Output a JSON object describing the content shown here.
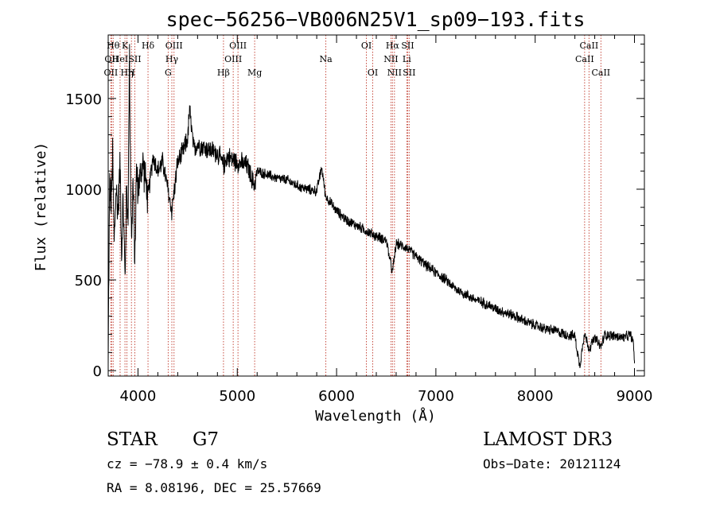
{
  "chart_data": {
    "type": "line",
    "title": "spec−56256−VB006N25V1_sp09−193.fits",
    "xlabel": "Wavelength (Å)",
    "ylabel": "Flux (relative)",
    "xlim": [
      3700,
      9100
    ],
    "ylim": [
      -30,
      1850
    ],
    "xticks": [
      4000,
      5000,
      6000,
      7000,
      8000,
      9000
    ],
    "yticks": [
      0,
      500,
      1000,
      1500
    ],
    "series": [
      {
        "name": "spectrum",
        "color": "#000000",
        "anchors": [
          [
            3700,
            30
          ],
          [
            3705,
            420
          ],
          [
            3715,
            1050
          ],
          [
            3730,
            900
          ],
          [
            3745,
            1200
          ],
          [
            3760,
            700
          ],
          [
            3780,
            1000
          ],
          [
            3800,
            880
          ],
          [
            3820,
            1150
          ],
          [
            3835,
            650
          ],
          [
            3850,
            950
          ],
          [
            3870,
            500
          ],
          [
            3885,
            1000
          ],
          [
            3900,
            850
          ],
          [
            3915,
            1800
          ],
          [
            3920,
            1300
          ],
          [
            3935,
            700
          ],
          [
            3950,
            1050
          ],
          [
            3968,
            600
          ],
          [
            3985,
            1100
          ],
          [
            4000,
            1000
          ],
          [
            4050,
            1150
          ],
          [
            4100,
            950
          ],
          [
            4150,
            1180
          ],
          [
            4200,
            1100
          ],
          [
            4250,
            1150
          ],
          [
            4300,
            1000
          ],
          [
            4340,
            880
          ],
          [
            4400,
            1150
          ],
          [
            4450,
            1200
          ],
          [
            4500,
            1280
          ],
          [
            4520,
            1440
          ],
          [
            4560,
            1220
          ],
          [
            4600,
            1250
          ],
          [
            4700,
            1220
          ],
          [
            4800,
            1200
          ],
          [
            4861,
            1130
          ],
          [
            4900,
            1180
          ],
          [
            5000,
            1150
          ],
          [
            5100,
            1130
          ],
          [
            5170,
            1020
          ],
          [
            5200,
            1100
          ],
          [
            5300,
            1080
          ],
          [
            5400,
            1060
          ],
          [
            5500,
            1050
          ],
          [
            5600,
            1020
          ],
          [
            5700,
            1000
          ],
          [
            5800,
            990
          ],
          [
            5850,
            1120
          ],
          [
            5890,
            960
          ],
          [
            6000,
            880
          ],
          [
            6100,
            830
          ],
          [
            6200,
            800
          ],
          [
            6300,
            770
          ],
          [
            6400,
            740
          ],
          [
            6500,
            720
          ],
          [
            6563,
            540
          ],
          [
            6600,
            700
          ],
          [
            6700,
            680
          ],
          [
            6800,
            630
          ],
          [
            6900,
            580
          ],
          [
            7000,
            540
          ],
          [
            7100,
            500
          ],
          [
            7200,
            450
          ],
          [
            7300,
            420
          ],
          [
            7400,
            390
          ],
          [
            7500,
            370
          ],
          [
            7600,
            340
          ],
          [
            7700,
            320
          ],
          [
            7800,
            300
          ],
          [
            7900,
            270
          ],
          [
            8000,
            250
          ],
          [
            8100,
            230
          ],
          [
            8200,
            220
          ],
          [
            8300,
            200
          ],
          [
            8400,
            190
          ],
          [
            8450,
            20
          ],
          [
            8480,
            160
          ],
          [
            8500,
            200
          ],
          [
            8542,
            120
          ],
          [
            8600,
            180
          ],
          [
            8662,
            130
          ],
          [
            8700,
            200
          ],
          [
            8800,
            190
          ],
          [
            8900,
            180
          ],
          [
            8960,
            200
          ],
          [
            8990,
            150
          ],
          [
            9000,
            40
          ]
        ]
      }
    ],
    "line_marks": [
      {
        "w": 3727,
        "label": "OII",
        "row": 3
      },
      {
        "w": 3734,
        "label": "OII",
        "row": 2
      },
      {
        "w": 3750,
        "label": "Hθ",
        "row": 1
      },
      {
        "w": 3820,
        "label": "HeI",
        "row": 2
      },
      {
        "w": 3869,
        "label": "K",
        "row": 1
      },
      {
        "w": 3889,
        "label": "Hη",
        "row": 3
      },
      {
        "w": 3934,
        "label": "H",
        "row": 3
      },
      {
        "w": 3968,
        "label": "SII",
        "row": 2
      },
      {
        "w": 4101,
        "label": "Hδ",
        "row": 1
      },
      {
        "w": 4304,
        "label": "G",
        "row": 3
      },
      {
        "w": 4341,
        "label": "Hγ",
        "row": 2
      },
      {
        "w": 4363,
        "label": "OIII",
        "row": 1
      },
      {
        "w": 4861,
        "label": "Hβ",
        "row": 3
      },
      {
        "w": 4959,
        "label": "OIII",
        "row": 2
      },
      {
        "w": 5007,
        "label": "OIII",
        "row": 1
      },
      {
        "w": 5175,
        "label": "Mg",
        "row": 3
      },
      {
        "w": 5892,
        "label": "Na",
        "row": 2
      },
      {
        "w": 6300,
        "label": "OI",
        "row": 1
      },
      {
        "w": 6364,
        "label": "OI",
        "row": 3
      },
      {
        "w": 6548,
        "label": "NII",
        "row": 2
      },
      {
        "w": 6563,
        "label": "Hα",
        "row": 1
      },
      {
        "w": 6583,
        "label": "NII",
        "row": 3
      },
      {
        "w": 6707,
        "label": "Li",
        "row": 2
      },
      {
        "w": 6716,
        "label": "SII",
        "row": 1
      },
      {
        "w": 6731,
        "label": "SII",
        "row": 3
      },
      {
        "w": 8498,
        "label": "CaII",
        "row": 2
      },
      {
        "w": 8542,
        "label": "CaII",
        "row": 1
      },
      {
        "w": 8662,
        "label": "CaII",
        "row": 3
      }
    ],
    "line_mark_color": "#c0392b"
  },
  "footer": {
    "object_class": "STAR",
    "subclass": "G7",
    "survey": "LAMOST  DR3",
    "cz": "cz = −78.9 ± 0.4 km/s",
    "obs_date": "Obs−Date: 20121124",
    "coords": "RA =   8.08196, DEC =  25.57669"
  }
}
